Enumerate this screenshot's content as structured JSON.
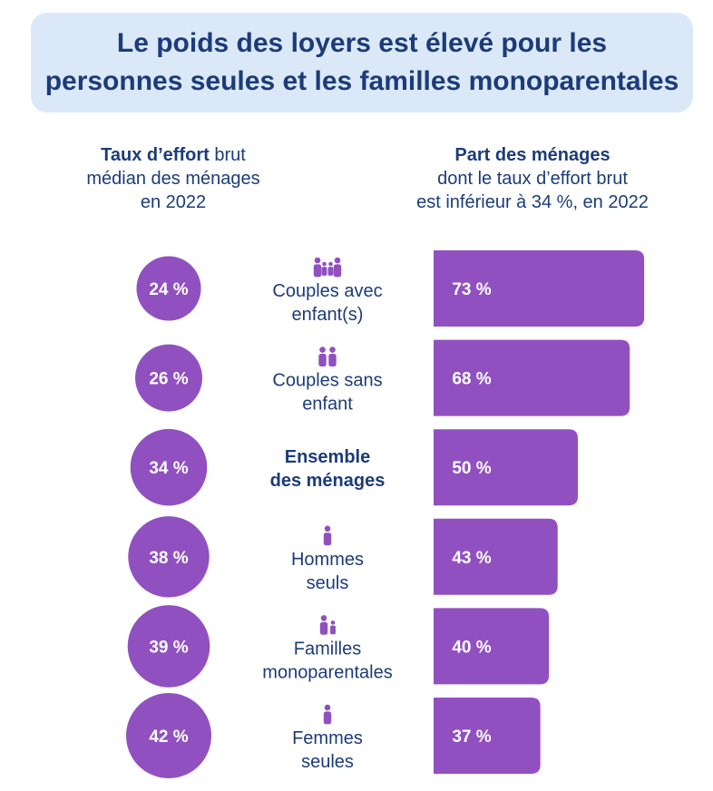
{
  "title": "Le poids des loyers est élevé pour les personnes seules et les familles monoparentales",
  "left_header": {
    "bold": "Taux d’effort",
    "rest1": " brut",
    "line2": "médian des ménages",
    "line3": "en 2022"
  },
  "right_header": {
    "bold": "Part des ménages",
    "line2": "dont le taux d’effort brut",
    "line3": "est inférieur à 34 %, en 2022"
  },
  "colors": {
    "accent": "#9150c0",
    "text": "#1c3c78",
    "title_bg": "#dbe8f8"
  },
  "chart_data": {
    "type": "bar",
    "categories": [
      {
        "lines": [
          "Couples avec",
          "enfant(s)"
        ],
        "icon": "family-icon",
        "bold": false
      },
      {
        "lines": [
          "Couples sans",
          "enfant"
        ],
        "icon": "couple-icon",
        "bold": false
      },
      {
        "lines": [
          "Ensemble",
          "des ménages"
        ],
        "icon": "",
        "bold": true
      },
      {
        "lines": [
          "Hommes",
          "seuls"
        ],
        "icon": "person-icon",
        "bold": false
      },
      {
        "lines": [
          "Familles",
          "monoparentales"
        ],
        "icon": "single-parent-icon",
        "bold": false
      },
      {
        "lines": [
          "Femmes",
          "seules"
        ],
        "icon": "person-icon",
        "bold": false
      }
    ],
    "series": [
      {
        "values": [
          24,
          26,
          34,
          38,
          39,
          42
        ],
        "labels": [
          "24 %",
          "26 %",
          "34 %",
          "38 %",
          "39 %",
          "42 %"
        ]
      },
      {
        "values": [
          73,
          68,
          50,
          43,
          40,
          37
        ],
        "labels": [
          "73 %",
          "68 %",
          "50 %",
          "43 %",
          "40 %",
          "37 %"
        ]
      }
    ],
    "unit": "%"
  }
}
